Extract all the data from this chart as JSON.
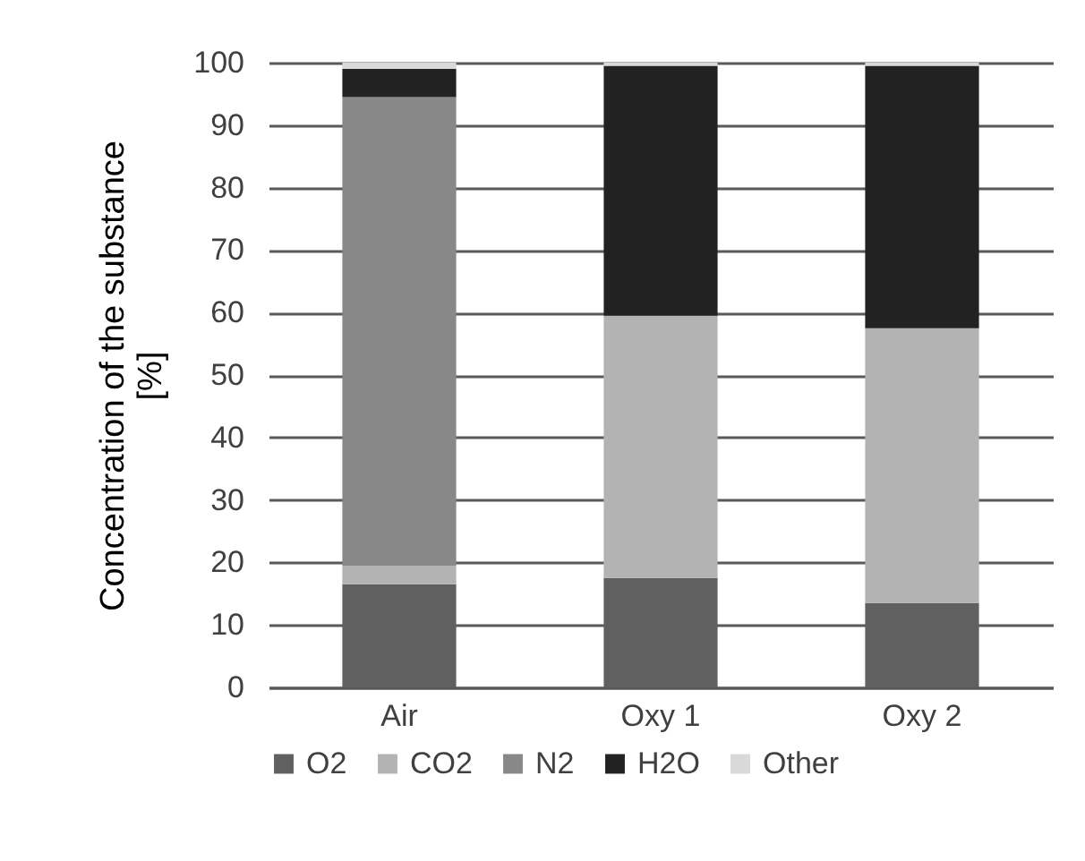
{
  "chart_data": {
    "type": "bar",
    "stacked": true,
    "ylabel": "Concentration of the substance [%]",
    "categories": [
      "Air",
      "Oxy 1",
      "Oxy 2"
    ],
    "series": [
      {
        "name": "O2",
        "color": "#606060",
        "values": [
          16.5,
          17.5,
          13.5
        ]
      },
      {
        "name": "CO2",
        "color": "#b3b3b3",
        "values": [
          3,
          42,
          44
        ]
      },
      {
        "name": "N2",
        "color": "#888888",
        "values": [
          75,
          0,
          0
        ]
      },
      {
        "name": "H2O",
        "color": "#222222",
        "values": [
          4.5,
          40,
          42
        ]
      },
      {
        "name": "Other",
        "color": "#d9d9d9",
        "values": [
          1,
          0.5,
          0.5
        ]
      }
    ],
    "ylim": [
      0,
      100
    ],
    "yticks": [
      0,
      10,
      20,
      30,
      40,
      50,
      60,
      70,
      80,
      90,
      100
    ],
    "grid": "y",
    "legend": "bottom"
  }
}
